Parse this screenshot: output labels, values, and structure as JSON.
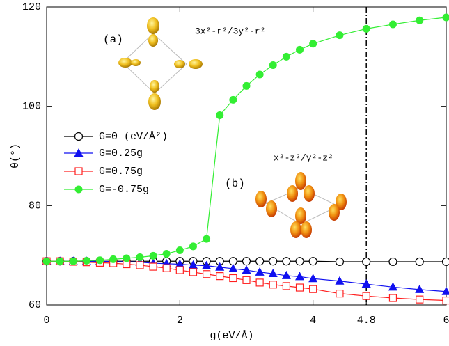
{
  "chart_data": {
    "type": "line",
    "xlabel": "g(eV/Å)",
    "ylabel": "θ(°)",
    "xlim": [
      0,
      6
    ],
    "ylim": [
      60,
      120
    ],
    "xticks": [
      0,
      2,
      4,
      4.8,
      6
    ],
    "yticks": [
      60,
      80,
      100,
      120
    ],
    "vline": 4.8,
    "annotations": [
      "(a)",
      "3x²-r²/3y²-r²",
      "(b)",
      "x²-z²/y²-z²"
    ],
    "x": [
      0,
      0.2,
      0.4,
      0.6,
      0.8,
      1.0,
      1.2,
      1.4,
      1.6,
      1.8,
      2.0,
      2.2,
      2.4,
      2.6,
      2.8,
      3.0,
      3.2,
      3.4,
      3.6,
      3.8,
      4.0,
      4.4,
      4.8,
      5.2,
      5.6,
      6.0
    ],
    "series": [
      {
        "name": "G=0 (eV/Å²)",
        "color": "#000000",
        "marker": "circle-open",
        "values": [
          68.8,
          68.8,
          68.8,
          68.8,
          68.8,
          68.8,
          68.8,
          68.8,
          68.8,
          68.8,
          68.8,
          68.8,
          68.8,
          68.8,
          68.8,
          68.8,
          68.8,
          68.8,
          68.8,
          68.8,
          68.8,
          68.7,
          68.7,
          68.7,
          68.7,
          68.7
        ]
      },
      {
        "name": "G=0.25g",
        "color": "#1010f0",
        "marker": "triangle",
        "values": [
          68.8,
          68.8,
          68.8,
          68.8,
          68.8,
          68.7,
          68.7,
          68.6,
          68.4,
          68.3,
          68.2,
          68.0,
          67.9,
          67.6,
          67.3,
          67.0,
          66.6,
          66.3,
          65.9,
          65.7,
          65.3,
          64.8,
          64.2,
          63.6,
          63.1,
          62.7
        ]
      },
      {
        "name": "G=0.75g",
        "color": "#ff2020",
        "marker": "square-open",
        "values": [
          68.8,
          68.8,
          68.7,
          68.6,
          68.5,
          68.4,
          68.2,
          68.0,
          67.7,
          67.4,
          67.0,
          66.6,
          66.2,
          65.8,
          65.4,
          65.0,
          64.5,
          64.1,
          63.8,
          63.5,
          63.2,
          62.3,
          61.8,
          61.4,
          61.1,
          60.9
        ]
      },
      {
        "name": "G=-0.75g",
        "color": "#33ee33",
        "marker": "circle-filled",
        "values": [
          68.8,
          68.8,
          68.8,
          68.9,
          69.0,
          69.2,
          69.4,
          69.6,
          69.9,
          70.3,
          71.0,
          71.8,
          73.3,
          98.2,
          101.3,
          104.1,
          106.4,
          108.3,
          110.0,
          111.4,
          112.6,
          114.3,
          115.6,
          116.5,
          117.3,
          117.9
        ]
      }
    ]
  }
}
